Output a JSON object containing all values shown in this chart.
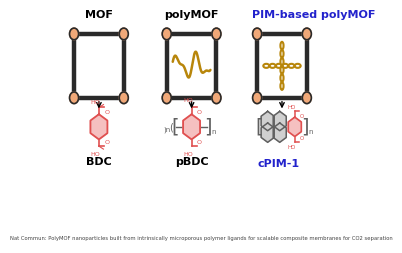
{
  "bg_color": "#ffffff",
  "title_mof": "MOF",
  "title_polymof": "polyMOF",
  "title_pim": "PIM-based polyMOF",
  "label_bdc": "BDC",
  "label_pbdc": "pBDC",
  "label_cpim": "cPIM-1",
  "frame_color": "#2a2a2a",
  "node_color": "#f0a878",
  "chain_color": "#b8860b",
  "mol_color": "#e05050",
  "mol_fill": "#f5c0c0",
  "gray_color": "#606060",
  "gray_fill": "#d0d0d0",
  "title_pim_color": "#2222cc",
  "label_cpim_color": "#2222cc",
  "footer_text": "Nat Commun: PolyMOF nanoparticles built from intrinsically microporous polymer ligands for scalable composite membranes for CO2 separation"
}
